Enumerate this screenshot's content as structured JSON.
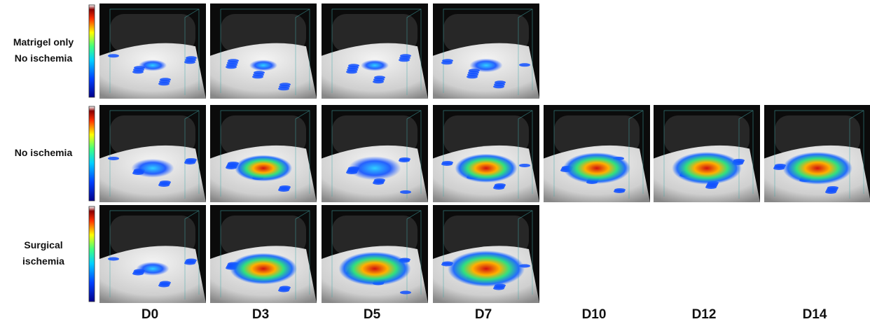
{
  "rows": [
    {
      "label_lines": [
        "Matrigel only",
        "No ischemia"
      ]
    },
    {
      "label_lines": [
        "No ischemia"
      ]
    },
    {
      "label_lines": [
        "Surgical",
        "ischemia"
      ]
    }
  ],
  "columns": [
    "D0",
    "D3",
    "D5",
    "D7",
    "D10",
    "D12",
    "D14"
  ]
}
